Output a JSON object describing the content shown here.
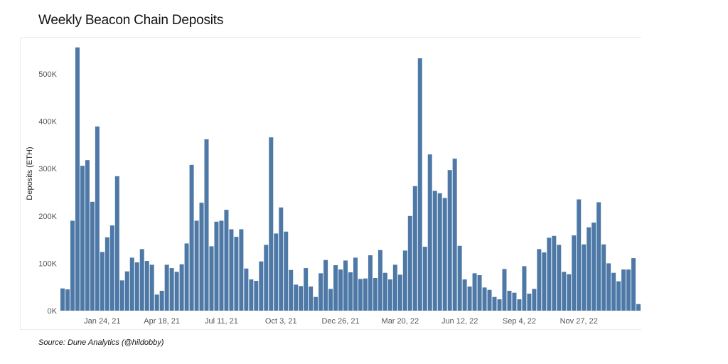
{
  "page": {
    "title": "Weekly Beacon Chain Deposits",
    "source": "Source: Dune Analytics (@hildobby)"
  },
  "chart_data": {
    "type": "bar",
    "title": "Weekly Beacon Chain Deposits",
    "xlabel": "",
    "ylabel": "Deposits (ETH)",
    "ylim": [
      0,
      560000
    ],
    "y_ticks": [
      "0K",
      "100K",
      "200K",
      "300K",
      "400K",
      "500K"
    ],
    "y_tick_values": [
      0,
      100000,
      200000,
      300000,
      400000,
      500000
    ],
    "x_ticks": [
      "Jan 24, 21",
      "Apr 18, 21",
      "Jul 11, 21",
      "Oct 3, 21",
      "Dec 26, 21",
      "Mar 20, 22",
      "Jun 12, 22",
      "Sep 4, 22",
      "Nov 27, 22"
    ],
    "x_tick_index": [
      8,
      20,
      32,
      44,
      56,
      68,
      80,
      92,
      104
    ],
    "bar_color": "#4e79a7",
    "grid": false,
    "series": [
      {
        "values": [
          47000,
          45000,
          190000,
          556000,
          306000,
          318000,
          230000,
          389000,
          124000,
          155000,
          180000,
          284000,
          64000,
          83000,
          112000,
          102000,
          130000,
          105000,
          97000,
          34000,
          42000,
          97000,
          90000,
          82000,
          98000,
          142000,
          308000,
          190000,
          228000,
          362000,
          136000,
          188000,
          190000,
          213000,
          172000,
          156000,
          172000,
          89000,
          66000,
          63000,
          104000,
          139000,
          366000,
          163000,
          218000,
          167000,
          86000,
          55000,
          52000,
          90000,
          51000,
          29000,
          79000,
          107000,
          46000,
          96000,
          87000,
          106000,
          81000,
          112000,
          67000,
          68000,
          117000,
          69000,
          128000,
          80000,
          66000,
          97000,
          76000,
          127000,
          200000,
          263000,
          533000,
          135000,
          330000,
          253000,
          248000,
          238000,
          297000,
          321000,
          137000,
          66000,
          51000,
          79000,
          75000,
          49000,
          44000,
          29000,
          24000,
          88000,
          42000,
          38000,
          24000,
          94000,
          36000,
          46000,
          130000,
          123000,
          154000,
          158000,
          139000,
          82000,
          77000,
          159000,
          235000,
          140000,
          176000,
          186000,
          229000,
          140000,
          100000,
          80000,
          62000,
          87000,
          87000,
          111000,
          14000
        ]
      }
    ]
  }
}
